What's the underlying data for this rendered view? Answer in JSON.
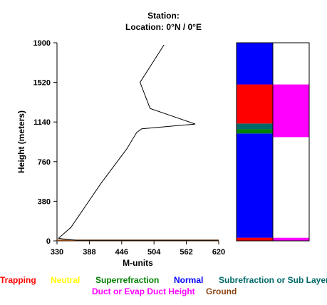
{
  "header": {
    "station_line": "Station:",
    "location_line": "Location:   0°N /   0°E"
  },
  "chart_data": {
    "type": "line",
    "xlabel": "M-units",
    "ylabel": "Height (meters)",
    "xlim": [
      330,
      620
    ],
    "ylim": [
      0,
      1900
    ],
    "x_ticks": [
      "330",
      "388",
      "446",
      "504",
      "562",
      "620"
    ],
    "y_ticks": [
      "0",
      "380",
      "760",
      "1140",
      "1520",
      "1900"
    ],
    "grid": false,
    "series": [
      {
        "color": "#000000",
        "points": [
          {
            "x": 522,
            "y": 1880
          },
          {
            "x": 479,
            "y": 1520
          },
          {
            "x": 497,
            "y": 1270
          },
          {
            "x": 578,
            "y": 1120
          },
          {
            "x": 482,
            "y": 1075
          },
          {
            "x": 473,
            "y": 1040
          },
          {
            "x": 455,
            "y": 880
          },
          {
            "x": 410,
            "y": 560
          },
          {
            "x": 355,
            "y": 130
          },
          {
            "x": 333,
            "y": 25
          },
          {
            "x": 340,
            "y": 20
          },
          {
            "x": 365,
            "y": 5
          },
          {
            "x": 620,
            "y": 5
          }
        ]
      }
    ],
    "ground_line": {
      "y": 5,
      "color": "#8B4513"
    },
    "category_columns": [
      {
        "name": "refraction",
        "segments": [
          {
            "from": 0,
            "to": 30,
            "category": "Trapping"
          },
          {
            "from": 30,
            "to": 1030,
            "category": "Normal"
          },
          {
            "from": 1030,
            "to": 1070,
            "category": "Superrefraction"
          },
          {
            "from": 1070,
            "to": 1125,
            "category": "Subrefraction or Sub Layer"
          },
          {
            "from": 1125,
            "to": 1500,
            "category": "Trapping"
          },
          {
            "from": 1500,
            "to": 1900,
            "category": "Normal"
          }
        ]
      },
      {
        "name": "duct",
        "segments": [
          {
            "from": 0,
            "to": 30,
            "category": "Duct or Evap Duct Height"
          },
          {
            "from": 30,
            "to": 995,
            "category": "none"
          },
          {
            "from": 995,
            "to": 1500,
            "category": "Duct or Evap Duct Height"
          },
          {
            "from": 1500,
            "to": 1900,
            "category": "none"
          }
        ]
      }
    ],
    "category_colors": {
      "Trapping": "#FF0000",
      "Neutral": "#FFFF00",
      "Superrefraction": "#008000",
      "Normal": "#0000FF",
      "Subrefraction or Sub Layer": "#006868",
      "Duct or Evap Duct Height": "#FF00FF",
      "Ground": "#8B4513",
      "none": "#FFFFFF"
    }
  },
  "legend": {
    "row1": [
      {
        "label": "Trapping",
        "color": "#FF0000"
      },
      {
        "label": "Neutral",
        "color": "#FFFF00"
      },
      {
        "label": "Superrefraction",
        "color": "#008000"
      },
      {
        "label": "Normal",
        "color": "#0000FF"
      },
      {
        "label": "Subrefraction or Sub Layer",
        "color": "#006868"
      }
    ],
    "row2": [
      {
        "label": "Duct or Evap Duct Height",
        "color": "#FF00FF"
      },
      {
        "label": "Ground",
        "color": "#8B4513"
      }
    ]
  }
}
